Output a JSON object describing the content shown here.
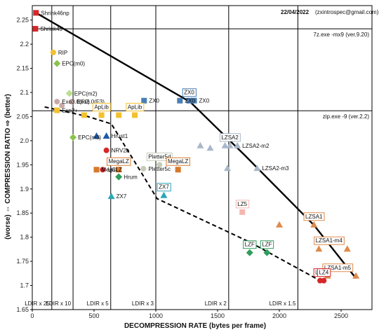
{
  "chart_data": {
    "type": "scatter",
    "header": {
      "date": "22/04/2022",
      "contact": "(zxintrospec@gmail.com)"
    },
    "xlabel": "DECOMPRESSION RATE (bytes per frame)",
    "ylabel": "(worse) ⇔ COMPRESSION RATIO ⇨ (better)",
    "xlim": [
      0,
      2750
    ],
    "ylim": [
      1.65,
      2.28
    ],
    "x_ticks": [
      0,
      500,
      1000,
      1500,
      2000,
      2500
    ],
    "y_ticks": [
      1.65,
      1.7,
      1.75,
      1.8,
      1.85,
      1.9,
      1.95,
      2,
      2.05,
      2.1,
      2.15,
      2.2,
      2.25
    ],
    "grid": false,
    "ref_hlines": [
      {
        "y": 2.232,
        "label": "7z.exe -mx9 (ver.9.20)"
      },
      {
        "y": 2.062,
        "label": "zip.exe -9 (ver.2.2)"
      }
    ],
    "ref_vlines": [
      {
        "x": 158,
        "label": "LDIR x 25"
      },
      {
        "x": 330,
        "label": "LDIR x 10"
      },
      {
        "x": 635,
        "label": "LDIR x 5"
      },
      {
        "x": 1000,
        "label": "LDIR x 3"
      },
      {
        "x": 1590,
        "label": "LDIR x 2"
      },
      {
        "x": 2150,
        "label": "LDIR x 1.5"
      }
    ],
    "frontier_solid": [
      [
        30,
        2.265
      ],
      [
        1280,
        2.08
      ],
      [
        1720,
        1.97
      ],
      [
        2280,
        1.825
      ],
      [
        2620,
        1.715
      ]
    ],
    "frontier_dashed": [
      [
        100,
        2.07
      ],
      [
        450,
        2.05
      ],
      [
        640,
        2.035
      ],
      [
        880,
        1.935
      ],
      [
        1010,
        1.88
      ],
      [
        1760,
        1.79
      ],
      [
        2330,
        1.71
      ]
    ],
    "points": [
      {
        "x": 30,
        "y": 2.265,
        "shape": "square",
        "color": "#d62728",
        "label": "Shrink46np",
        "label_boxed": false
      },
      {
        "x": 25,
        "y": 2.232,
        "shape": "square",
        "color": "#d62728",
        "label": "Shrink45",
        "label_boxed": false
      },
      {
        "x": 170,
        "y": 2.183,
        "shape": "circle",
        "color": "#f2c12e",
        "label": "RIP",
        "label_boxed": false
      },
      {
        "x": 200,
        "y": 2.16,
        "shape": "diamond",
        "color": "#8bc34a",
        "label": "EPC(m0)",
        "label_boxed": false
      },
      {
        "x": 300,
        "y": 2.098,
        "shape": "diamond",
        "color": "#b9e08a",
        "label": "EPC(m2)",
        "label_boxed": false
      },
      {
        "x": 200,
        "y": 2.081,
        "shape": "circle",
        "color": "#c9a9a6",
        "label": "Exo3.0(F0)",
        "label_boxed": false
      },
      {
        "x": 320,
        "y": 2.081,
        "shape": "circle",
        "color": "#c9a9a6",
        "label": "Exo3.0(F3)",
        "label_boxed": false
      },
      {
        "x": 240,
        "y": 2.073,
        "shape": "circle",
        "color": "#c9a9a6",
        "label": "",
        "label_boxed": false
      },
      {
        "x": 905,
        "y": 2.083,
        "shape": "square",
        "color": "#4a7fb5",
        "label": "ZX0",
        "label_boxed": false
      },
      {
        "x": 1195,
        "y": 2.083,
        "shape": "square",
        "color": "#4a7fb5",
        "label": "ZX0",
        "label_boxed": false
      },
      {
        "x": 1270,
        "y": 2.083,
        "shape": "square",
        "color": "#4a7fb5",
        "label": "ZX0",
        "label_boxed": true
      },
      {
        "x": 1310,
        "y": 2.083,
        "shape": "square",
        "color": "#4a7fb5",
        "label": "ZX0",
        "label_boxed": false
      },
      {
        "x": 200,
        "y": 2.063,
        "shape": "square",
        "color": "#f2c12e",
        "label": "Exo2+",
        "label_boxed": false
      },
      {
        "x": 420,
        "y": 2.053,
        "shape": "square",
        "color": "#f2c12e",
        "label": "",
        "label_boxed": false
      },
      {
        "x": 560,
        "y": 2.053,
        "shape": "square",
        "color": "#f2c12e",
        "label": "ApLib",
        "label_boxed": true
      },
      {
        "x": 700,
        "y": 2.053,
        "shape": "square",
        "color": "#f2c12e",
        "label": "",
        "label_boxed": false
      },
      {
        "x": 830,
        "y": 2.053,
        "shape": "square",
        "color": "#f2c12e",
        "label": "ApLib",
        "label_boxed": true
      },
      {
        "x": 520,
        "y": 2.01,
        "shape": "triangle",
        "color": "#1f5aa6",
        "label": "",
        "label_boxed": false
      },
      {
        "x": 600,
        "y": 2.01,
        "shape": "triangle",
        "color": "#1f5aa6",
        "label": "Hrust1",
        "label_boxed": false
      },
      {
        "x": 330,
        "y": 2.007,
        "shape": "diamond",
        "color": "#8bc34a",
        "label": "EPC(m3)",
        "label_boxed": false
      },
      {
        "x": 600,
        "y": 1.98,
        "shape": "circle",
        "color": "#d62728",
        "label": "NRV2b",
        "label_boxed": false
      },
      {
        "x": 1360,
        "y": 1.99,
        "shape": "triangle",
        "color": "#a9b7c9",
        "label": "",
        "label_boxed": false
      },
      {
        "x": 1440,
        "y": 1.985,
        "shape": "triangle",
        "color": "#a9b7c9",
        "label": "",
        "label_boxed": false
      },
      {
        "x": 1560,
        "y": 1.99,
        "shape": "triangle",
        "color": "#a9b7c9",
        "label": "",
        "label_boxed": false
      },
      {
        "x": 1600,
        "y": 1.99,
        "shape": "triangle",
        "color": "#a9b7c9",
        "label": "LZSA2",
        "label_boxed": true
      },
      {
        "x": 1660,
        "y": 1.99,
        "shape": "triangle",
        "color": "#a9b7c9",
        "label": "LZSA2-m2",
        "label_boxed": false
      },
      {
        "x": 1580,
        "y": 1.943,
        "shape": "triangle",
        "color": "#a9b7c9",
        "label": "",
        "label_boxed": false
      },
      {
        "x": 1820,
        "y": 1.943,
        "shape": "triangle",
        "color": "#a9b7c9",
        "label": "LZSA2-m3",
        "label_boxed": false
      },
      {
        "x": 1030,
        "y": 1.95,
        "shape": "circle",
        "color": "#c5ccb8",
        "label": "Pletter5d",
        "label_boxed": true
      },
      {
        "x": 900,
        "y": 1.942,
        "shape": "circle",
        "color": "#c5ccb8",
        "label": "Pletter5c",
        "label_boxed": false
      },
      {
        "x": 520,
        "y": 1.94,
        "shape": "square",
        "color": "#d67a2c",
        "label": "MegaLZ",
        "label_boxed": false
      },
      {
        "x": 700,
        "y": 1.94,
        "shape": "square",
        "color": "#d67a2c",
        "label": "MegaLZ",
        "label_boxed": true
      },
      {
        "x": 1180,
        "y": 1.94,
        "shape": "square",
        "color": "#d67a2c",
        "label": "MegaLZ",
        "label_boxed": true
      },
      {
        "x": 570,
        "y": 1.94,
        "shape": "circle",
        "color": "#d62728",
        "label": "UCL",
        "label_boxed": false
      },
      {
        "x": 700,
        "y": 1.925,
        "shape": "diamond",
        "color": "#2e9e5a",
        "label": "Hrum",
        "label_boxed": false
      },
      {
        "x": 640,
        "y": 1.885,
        "shape": "triangle",
        "color": "#2aa6b8",
        "label": "ZX7",
        "label_boxed": false
      },
      {
        "x": 1065,
        "y": 1.887,
        "shape": "triangle",
        "color": "#2aa6b8",
        "label": "ZX7",
        "label_boxed": true
      },
      {
        "x": 1700,
        "y": 1.852,
        "shape": "square",
        "color": "#f2b8b0",
        "label": "LZ5",
        "label_boxed": true
      },
      {
        "x": 2000,
        "y": 1.826,
        "shape": "triangle",
        "color": "#e0894a",
        "label": "",
        "label_boxed": false
      },
      {
        "x": 2280,
        "y": 1.826,
        "shape": "triangle",
        "color": "#e0894a",
        "label": "LZSA1",
        "label_boxed": true
      },
      {
        "x": 2320,
        "y": 1.776,
        "shape": "triangle",
        "color": "#e0894a",
        "label": "",
        "label_boxed": false
      },
      {
        "x": 2550,
        "y": 1.776,
        "shape": "triangle",
        "color": "#e0894a",
        "label": "LZSA1-m4",
        "label_boxed": true
      },
      {
        "x": 2620,
        "y": 1.72,
        "shape": "triangle",
        "color": "#e0894a",
        "label": "LZSA1-m5",
        "label_boxed": true
      },
      {
        "x": 2390,
        "y": 1.72,
        "shape": "triangle",
        "color": "#e0894a",
        "label": "",
        "label_boxed": false
      },
      {
        "x": 1760,
        "y": 1.768,
        "shape": "diamond",
        "color": "#2e9e5a",
        "label": "LZF",
        "label_boxed": true
      },
      {
        "x": 1900,
        "y": 1.768,
        "shape": "diamond",
        "color": "#2e9e5a",
        "label": "LZF",
        "label_boxed": true
      },
      {
        "x": 2330,
        "y": 1.71,
        "shape": "circle",
        "color": "#d62728",
        "label": "LZ4",
        "label_boxed": true
      },
      {
        "x": 2360,
        "y": 1.71,
        "shape": "circle",
        "color": "#d62728",
        "label": "LZ4",
        "label_boxed": true
      }
    ]
  }
}
